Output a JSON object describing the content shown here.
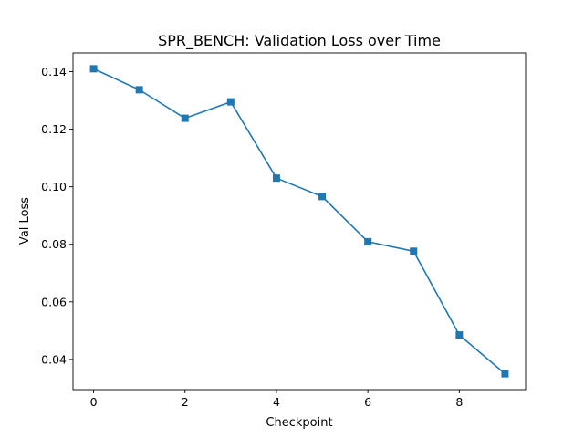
{
  "chart_data": {
    "type": "line",
    "title": "SPR_BENCH: Validation Loss over Time",
    "xlabel": "Checkpoint",
    "ylabel": "Val Loss",
    "xlim": [
      -0.45,
      9.45
    ],
    "ylim": [
      0.0295,
      0.1465
    ],
    "xticks": [
      0,
      2,
      4,
      6,
      8
    ],
    "xtick_labels": [
      "0",
      "2",
      "4",
      "6",
      "8"
    ],
    "yticks": [
      0.04,
      0.06,
      0.08,
      0.1,
      0.12,
      0.14
    ],
    "ytick_labels": [
      "0.04",
      "0.06",
      "0.08",
      "0.10",
      "0.12",
      "0.14"
    ],
    "grid": false,
    "series": [
      {
        "color": "#1f77b4",
        "marker": "square",
        "x": [
          0,
          1,
          2,
          3,
          4,
          5,
          6,
          7,
          8,
          9
        ],
        "values": [
          0.141,
          0.1337,
          0.1238,
          0.1295,
          0.103,
          0.0966,
          0.0809,
          0.0776,
          0.0485,
          0.035
        ]
      }
    ]
  }
}
